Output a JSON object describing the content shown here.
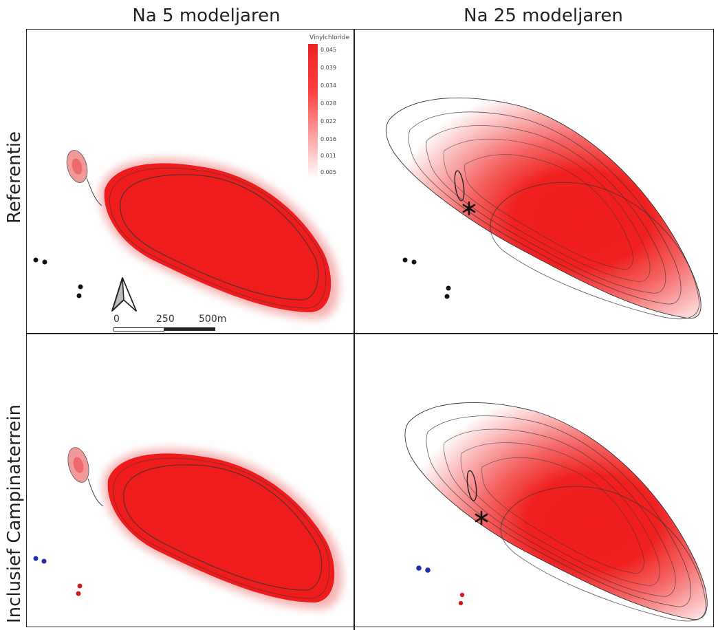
{
  "columns": [
    "Na 5 modeljaren",
    "Na 25 modeljaren"
  ],
  "rows": [
    "Referentie",
    "Inclusief Campinaterrein"
  ],
  "legend": {
    "title": "Vinylchloride",
    "ticks": [
      "0.045",
      "0.039",
      "0.034",
      "0.028",
      "0.022",
      "0.016",
      "0.011",
      "0.005"
    ]
  },
  "scale_bar": {
    "labels": [
      "0",
      "250",
      "500m"
    ]
  },
  "colors": {
    "plume": "#ee1c1c",
    "wells_reference": "#111111",
    "wells_blue": "#1a2fb0",
    "wells_red": "#c82020"
  },
  "icons": [
    "north-arrow-icon",
    "asterisk-marker-icon"
  ]
}
